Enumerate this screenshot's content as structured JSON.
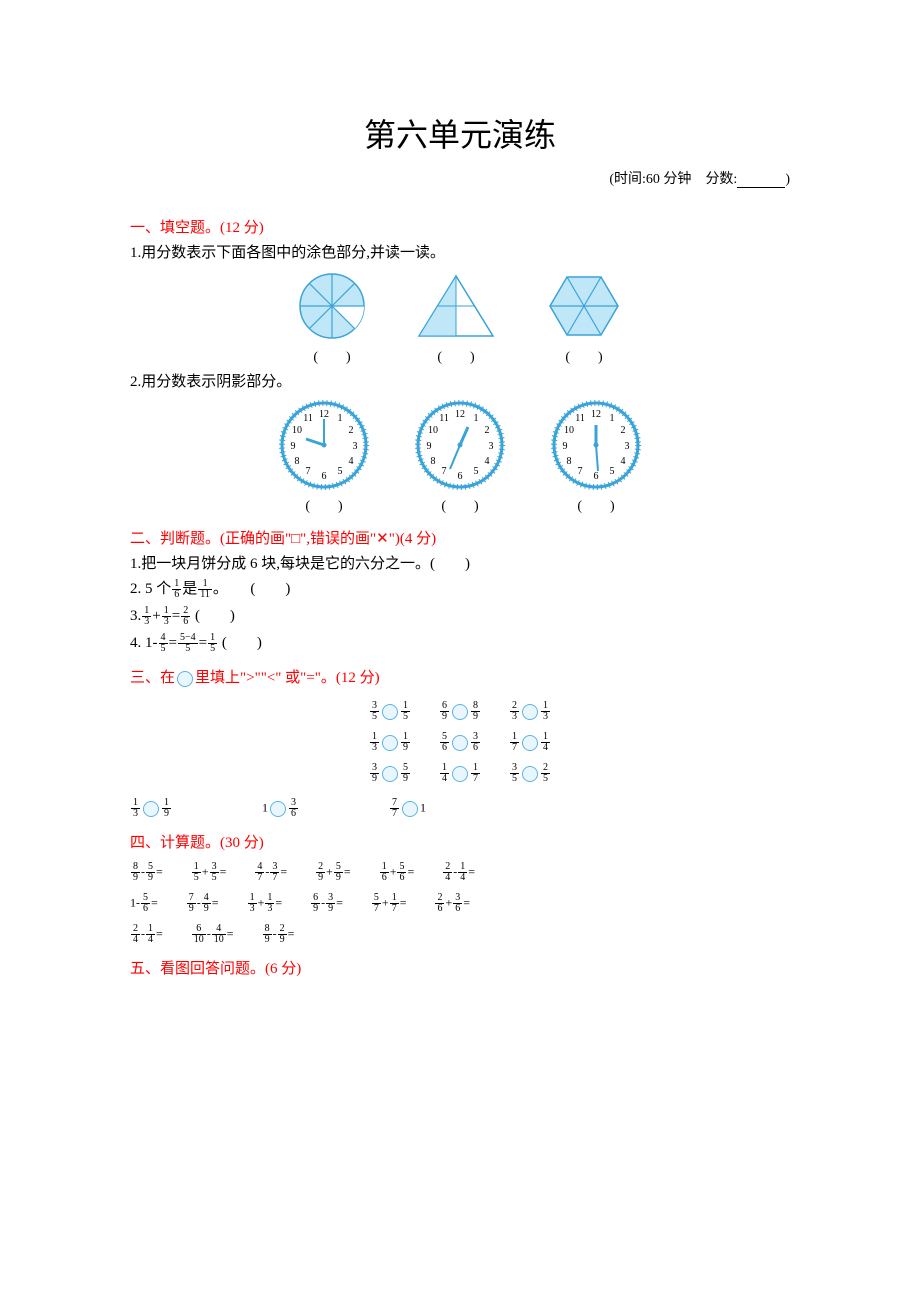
{
  "title": "第六单元演练",
  "meta": {
    "time_label": "(时间:60 分钟",
    "score_label": "分数:",
    "close": ")"
  },
  "s1": {
    "heading": "一、填空题。(12 分)",
    "q1": "1.用分数表示下面各图中的涂色部分,并读一读。",
    "q2": "2.用分数表示阴影部分。",
    "paren": "(　　)",
    "figures": {
      "shape_fill": "#bfe7f7",
      "shape_stroke": "#3aa3d8",
      "clock_stroke": "#3aa3d8",
      "clock_fill": "#ffffff",
      "clock_hand": "#3aa3d8"
    }
  },
  "s2": {
    "heading": "二、判断题。(正确的画\"□\",错误的画\"✕\")(4 分)",
    "q1": "1.把一块月饼分成 6 块,每块是它的六分之一。(　　)",
    "q2_pre": "2. 5 个",
    "q2_f1": {
      "n": "1",
      "d": "6"
    },
    "q2_mid": "是",
    "q2_f2": {
      "n": "1",
      "d": "11"
    },
    "q2_post": "。　　(　　)",
    "q3_pre": "3.",
    "q3_a": {
      "n": "1",
      "d": "3"
    },
    "q3_plus": "+",
    "q3_b": {
      "n": "1",
      "d": "3"
    },
    "q3_eq": "=",
    "q3_c": {
      "n": "2",
      "d": "6"
    },
    "q3_post": " (　　)",
    "q4_pre": "4. 1-",
    "q4_a": {
      "n": "4",
      "d": "5"
    },
    "q4_eq1": "=",
    "q4_b": {
      "n": "5−4",
      "d": "5"
    },
    "q4_eq2": "=",
    "q4_c": {
      "n": "1",
      "d": "5"
    },
    "q4_post": " (　　)"
  },
  "s3": {
    "heading_pre": "三、在",
    "heading_post": "里填上\">\"\"<\"  或\"=\"。(12 分)",
    "rows": [
      [
        {
          "a": {
            "n": "3",
            "d": "5"
          },
          "b": {
            "n": "1",
            "d": "5"
          },
          "tight": true
        },
        {
          "a": {
            "n": "6",
            "d": "9"
          },
          "b": {
            "n": "8",
            "d": "9"
          },
          "tight": true
        },
        {
          "a": {
            "n": "2",
            "d": "3"
          },
          "b": {
            "n": "1",
            "d": "3"
          },
          "tight": true
        }
      ],
      [
        {
          "a": {
            "n": "1",
            "d": "3"
          },
          "b": {
            "n": "1",
            "d": "9"
          }
        },
        {
          "a": {
            "n": "5",
            "d": "6"
          },
          "b": {
            "n": "3",
            "d": "6"
          }
        },
        {
          "a": {
            "n": "1",
            "d": "7"
          },
          "b": {
            "n": "1",
            "d": "4"
          }
        }
      ],
      [
        {
          "a": {
            "n": "3",
            "d": "9"
          },
          "b": {
            "n": "5",
            "d": "9"
          }
        },
        {
          "a": {
            "n": "1",
            "d": "4"
          },
          "b": {
            "n": "1",
            "d": "7"
          }
        },
        {
          "a": {
            "n": "3",
            "d": "5"
          },
          "b": {
            "n": "2",
            "d": "5"
          }
        }
      ]
    ],
    "last": [
      {
        "a": {
          "n": "1",
          "d": "3"
        },
        "b": {
          "n": "1",
          "d": "9"
        }
      },
      {
        "text_a": "1",
        "b": {
          "n": "3",
          "d": "6"
        }
      },
      {
        "a": {
          "n": "7",
          "d": "7"
        },
        "text_b": "1"
      }
    ]
  },
  "s4": {
    "heading": "四、计算题。(30 分)",
    "rows": [
      [
        {
          "expr": [
            {
              "n": "8",
              "d": "9"
            },
            "-",
            {
              "n": "5",
              "d": "9"
            },
            "="
          ]
        },
        {
          "expr": [
            {
              "n": "1",
              "d": "5"
            },
            "+",
            {
              "n": "3",
              "d": "5"
            },
            "="
          ]
        },
        {
          "expr": [
            {
              "n": "4",
              "d": "7"
            },
            "-",
            {
              "n": "3",
              "d": "7"
            },
            "="
          ]
        },
        {
          "expr": [
            {
              "n": "2",
              "d": "9"
            },
            "+",
            {
              "n": "5",
              "d": "9"
            },
            "="
          ]
        },
        {
          "expr": [
            {
              "n": "1",
              "d": "6"
            },
            "+",
            {
              "n": "5",
              "d": "6"
            },
            "="
          ]
        },
        {
          "expr": [
            {
              "n": "2",
              "d": "4"
            },
            "-",
            {
              "n": "1",
              "d": "4"
            },
            "="
          ]
        }
      ],
      [
        {
          "expr": [
            "1-",
            {
              "n": "5",
              "d": "6"
            },
            "="
          ]
        },
        {
          "expr": [
            {
              "n": "7",
              "d": "9"
            },
            "-",
            {
              "n": "4",
              "d": "9"
            },
            "="
          ]
        },
        {
          "expr": [
            {
              "n": "1",
              "d": "3"
            },
            "+",
            {
              "n": "1",
              "d": "3"
            },
            "="
          ]
        },
        {
          "expr": [
            {
              "n": "6",
              "d": "9"
            },
            "-",
            {
              "n": "3",
              "d": "9"
            },
            "="
          ]
        },
        {
          "expr": [
            {
              "n": "5",
              "d": "7"
            },
            "+",
            {
              "n": "1",
              "d": "7"
            },
            "="
          ]
        },
        {
          "expr": [
            {
              "n": "2",
              "d": "6"
            },
            "+",
            {
              "n": "3",
              "d": "6"
            },
            "="
          ]
        }
      ],
      [
        {
          "expr": [
            {
              "n": "2",
              "d": "4"
            },
            "-",
            {
              "n": "1",
              "d": "4"
            },
            "="
          ]
        },
        {
          "expr": [
            {
              "n": "6",
              "d": "10"
            },
            "-",
            {
              "n": "4",
              "d": "10"
            },
            "="
          ]
        },
        {
          "expr": [
            {
              "n": "8",
              "d": "9"
            },
            "-",
            {
              "n": "2",
              "d": "9"
            },
            "="
          ]
        }
      ]
    ]
  },
  "s5": {
    "heading": "五、看图回答问题。(6 分)"
  }
}
